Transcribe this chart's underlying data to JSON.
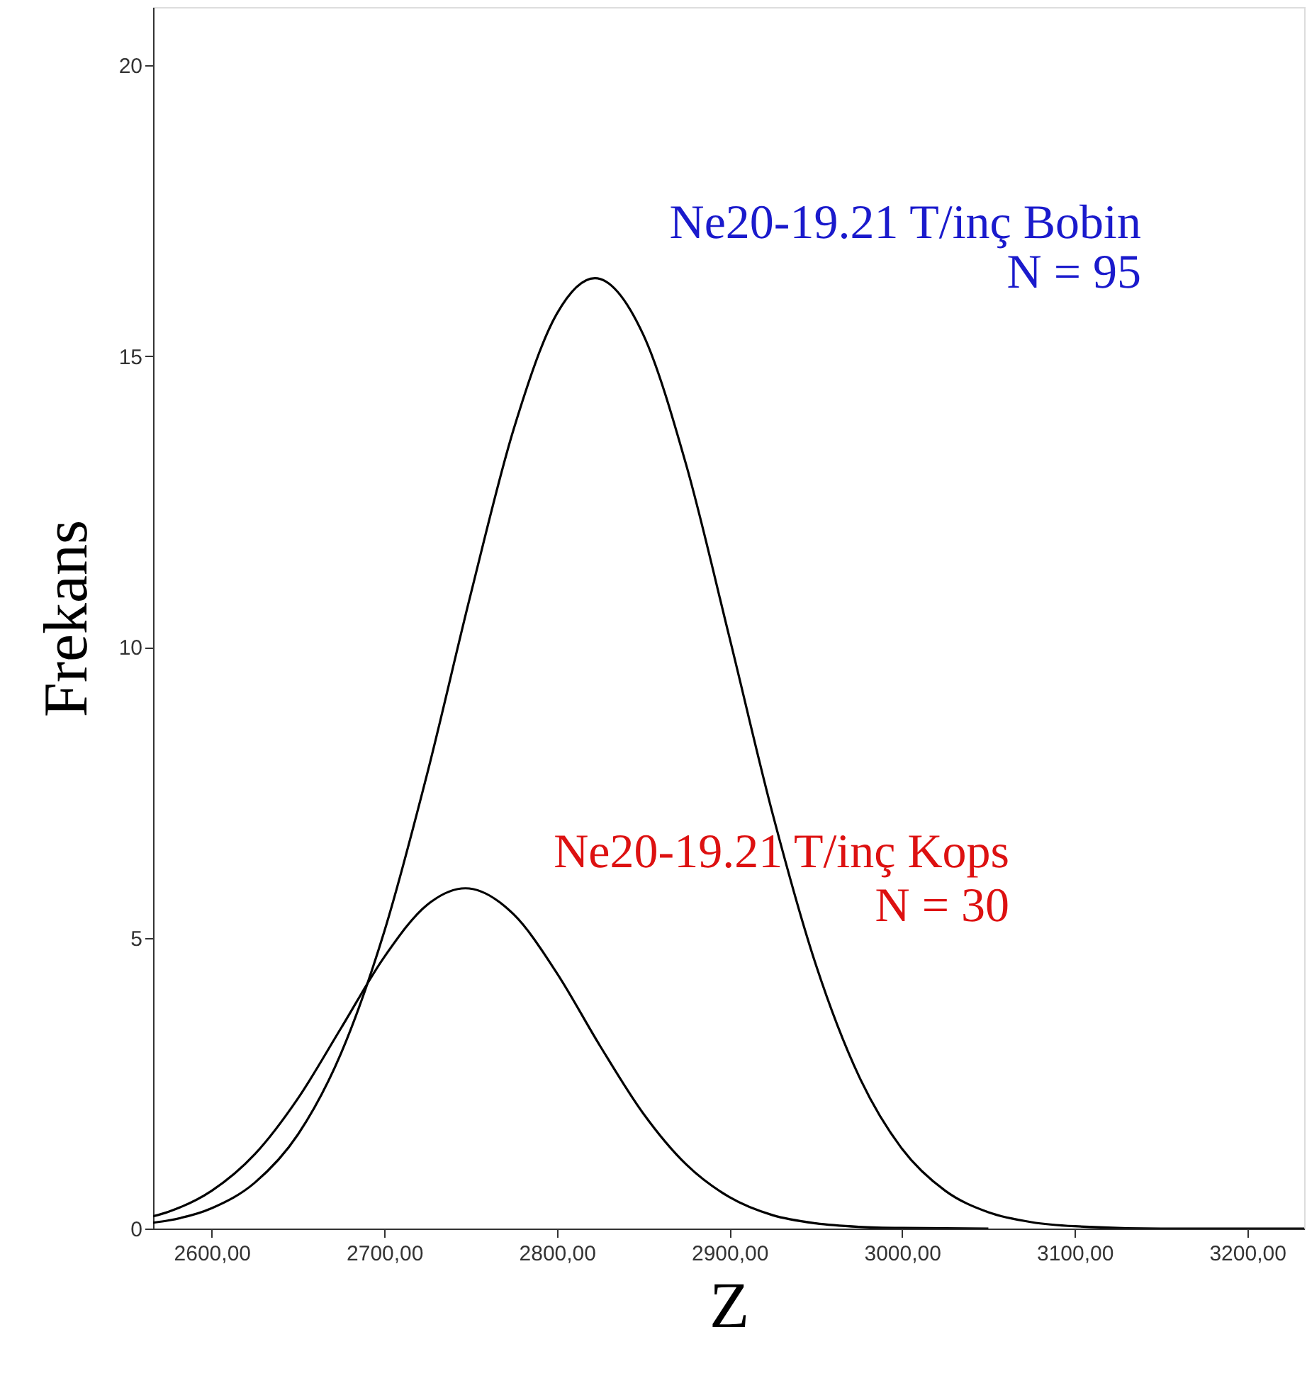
{
  "chart_data": {
    "type": "line",
    "xlabel": "Z",
    "ylabel": "Frekans",
    "xlim": [
      2566,
      3233
    ],
    "ylim": [
      0,
      21
    ],
    "xticks": [
      {
        "value": 2600,
        "label": "2600,00"
      },
      {
        "value": 2700,
        "label": "2700,00"
      },
      {
        "value": 2800,
        "label": "2800,00"
      },
      {
        "value": 2900,
        "label": "2900,00"
      },
      {
        "value": 3000,
        "label": "3000,00"
      },
      {
        "value": 3100,
        "label": "3100,00"
      },
      {
        "value": 3200,
        "label": "3200,00"
      }
    ],
    "yticks": [
      0,
      5,
      10,
      15,
      20
    ],
    "grid": false,
    "marker": "none",
    "line_style": "solid",
    "series": [
      {
        "color": "#000000",
        "x": [
          2566,
          2575,
          2600,
          2625,
          2650,
          2675,
          2700,
          2725,
          2750,
          2775,
          2800,
          2822,
          2850,
          2875,
          2900,
          2925,
          2950,
          2975,
          3000,
          3025,
          3050,
          3075,
          3100,
          3150,
          3233
        ],
        "values": [
          0.1,
          0.14,
          0.35,
          0.79,
          1.62,
          3.02,
          5.11,
          7.84,
          10.9,
          13.75,
          15.73,
          16.34,
          15.37,
          13.12,
          10.16,
          7.13,
          4.54,
          2.62,
          1.37,
          0.65,
          0.28,
          0.11,
          0.04,
          0.0,
          0.0
        ]
      },
      {
        "color": "#000000",
        "x": [
          2566,
          2575,
          2600,
          2625,
          2650,
          2675,
          2700,
          2725,
          2747,
          2775,
          2800,
          2825,
          2850,
          2875,
          2900,
          2925,
          2950,
          2975,
          3000,
          3050
        ],
        "values": [
          0.21,
          0.29,
          0.65,
          1.28,
          2.24,
          3.45,
          4.67,
          5.57,
          5.85,
          5.4,
          4.39,
          3.14,
          1.98,
          1.1,
          0.54,
          0.23,
          0.09,
          0.03,
          0.01,
          0.0
        ]
      }
    ],
    "annotations": [
      "Ne20-19.21 T/inç Bobin",
      "N = 95",
      "Ne20-19.21 T/inç Kops",
      "N = 30"
    ]
  }
}
